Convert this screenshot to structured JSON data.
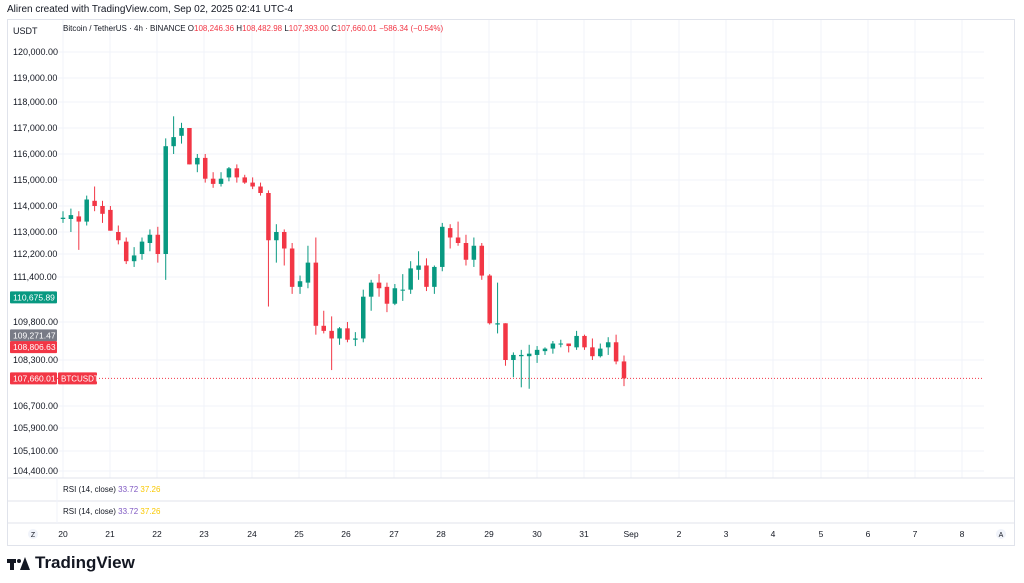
{
  "header": {
    "text": "Aliren created with TradingView.com, Sep 02, 2025 02:41 UTC-4"
  },
  "chart_data": {
    "type": "candlestick",
    "currency_label": "USDT",
    "symbol": "Bitcoin / TetherUS · 4h · BINANCE",
    "ohlc": {
      "o_label": "O",
      "o": "108,246.36",
      "h_label": "H",
      "h": "108,482.98",
      "l_label": "L",
      "l": "107,393.00",
      "c_label": "C",
      "c": "107,660.01",
      "change": "−586.34 (−0.54%)"
    },
    "y_ticks": [
      {
        "label": "120,000.00",
        "v": 120000
      },
      {
        "label": "119,000.00",
        "v": 119000
      },
      {
        "label": "118,000.00",
        "v": 118000
      },
      {
        "label": "117,000.00",
        "v": 117000
      },
      {
        "label": "116,000.00",
        "v": 116000
      },
      {
        "label": "115,000.00",
        "v": 115000
      },
      {
        "label": "114,000.00",
        "v": 114000
      },
      {
        "label": "113,000.00",
        "v": 113000
      },
      {
        "label": "112,200.00",
        "v": 112200
      },
      {
        "label": "111,400.00",
        "v": 111400
      },
      {
        "label": "109,800.00",
        "v": 109800
      },
      {
        "label": "108,300.00",
        "v": 108300
      },
      {
        "label": "106,700.00",
        "v": 106700
      },
      {
        "label": "105,900.00",
        "v": 105900
      },
      {
        "label": "105,100.00",
        "v": 105100
      },
      {
        "label": "104,400.00",
        "v": 104400
      }
    ],
    "price_badges": [
      {
        "label": "110,675.89",
        "v": 110675.89,
        "color": "#089981"
      },
      {
        "label": "109,271.47",
        "v": 109271.47,
        "color": "#787b86"
      },
      {
        "label": "108,806.63",
        "v": 108806.63,
        "color": "#f23645"
      },
      {
        "label": "107,660.01",
        "v": 107660.01,
        "color": "#f23645"
      }
    ],
    "current_price_symbol": "BTCUSDT",
    "x_labels": [
      "20",
      "21",
      "22",
      "23",
      "24",
      "25",
      "26",
      "27",
      "28",
      "29",
      "30",
      "31",
      "Sep",
      "2",
      "3",
      "4",
      "5",
      "6",
      "7",
      "8"
    ],
    "rsi_panes": [
      {
        "label": "RSI (14, close)",
        "v1": "33.72",
        "v2": "37.26"
      },
      {
        "label": "RSI (14, close)",
        "v1": "33.72",
        "v2": "37.26"
      }
    ],
    "candles": [
      {
        "o": 113500,
        "h": 113800,
        "l": 113350,
        "c": 113550
      },
      {
        "o": 113500,
        "h": 113900,
        "l": 113000,
        "c": 113650
      },
      {
        "o": 113600,
        "h": 113800,
        "l": 112350,
        "c": 113400
      },
      {
        "o": 113400,
        "h": 114400,
        "l": 113250,
        "c": 114250
      },
      {
        "o": 114200,
        "h": 114750,
        "l": 113800,
        "c": 114000
      },
      {
        "o": 114000,
        "h": 114200,
        "l": 113350,
        "c": 113700
      },
      {
        "o": 113850,
        "h": 114000,
        "l": 113050,
        "c": 113050
      },
      {
        "o": 113000,
        "h": 113250,
        "l": 112550,
        "c": 112700
      },
      {
        "o": 112650,
        "h": 112800,
        "l": 111850,
        "c": 111950
      },
      {
        "o": 111950,
        "h": 112450,
        "l": 111750,
        "c": 112150
      },
      {
        "o": 112200,
        "h": 112800,
        "l": 112000,
        "c": 112650
      },
      {
        "o": 112600,
        "h": 113100,
        "l": 112300,
        "c": 112900
      },
      {
        "o": 112900,
        "h": 113200,
        "l": 111900,
        "c": 112200
      },
      {
        "o": 112200,
        "h": 116600,
        "l": 111300,
        "c": 116300
      },
      {
        "o": 116300,
        "h": 117450,
        "l": 116000,
        "c": 116650
      },
      {
        "o": 116700,
        "h": 117200,
        "l": 116400,
        "c": 117000
      },
      {
        "o": 117000,
        "h": 117000,
        "l": 115600,
        "c": 115600
      },
      {
        "o": 115600,
        "h": 116000,
        "l": 115300,
        "c": 115850
      },
      {
        "o": 115850,
        "h": 116000,
        "l": 114900,
        "c": 115050
      },
      {
        "o": 115050,
        "h": 115300,
        "l": 114700,
        "c": 114850
      },
      {
        "o": 114850,
        "h": 115300,
        "l": 114750,
        "c": 115050
      },
      {
        "o": 115100,
        "h": 115500,
        "l": 114950,
        "c": 115450
      },
      {
        "o": 115450,
        "h": 115600,
        "l": 114900,
        "c": 115100
      },
      {
        "o": 115100,
        "h": 115200,
        "l": 114850,
        "c": 114900
      },
      {
        "o": 114900,
        "h": 115100,
        "l": 114650,
        "c": 114750
      },
      {
        "o": 114750,
        "h": 114900,
        "l": 114400,
        "c": 114500
      },
      {
        "o": 114500,
        "h": 114600,
        "l": 110350,
        "c": 112700
      },
      {
        "o": 112700,
        "h": 113300,
        "l": 111900,
        "c": 113000
      },
      {
        "o": 113000,
        "h": 113100,
        "l": 111800,
        "c": 112400
      },
      {
        "o": 112400,
        "h": 112600,
        "l": 110800,
        "c": 111050
      },
      {
        "o": 111050,
        "h": 111450,
        "l": 110800,
        "c": 111250
      },
      {
        "o": 111200,
        "h": 112500,
        "l": 111000,
        "c": 111900
      },
      {
        "o": 111900,
        "h": 112800,
        "l": 109300,
        "c": 109650
      },
      {
        "o": 109650,
        "h": 110200,
        "l": 109350,
        "c": 109450
      },
      {
        "o": 109450,
        "h": 110000,
        "l": 107950,
        "c": 109150
      },
      {
        "o": 109150,
        "h": 109600,
        "l": 108900,
        "c": 109550
      },
      {
        "o": 109550,
        "h": 109800,
        "l": 109000,
        "c": 109100
      },
      {
        "o": 109100,
        "h": 109400,
        "l": 108850,
        "c": 109150
      },
      {
        "o": 109150,
        "h": 110950,
        "l": 109000,
        "c": 110700
      },
      {
        "o": 110700,
        "h": 111300,
        "l": 110200,
        "c": 111200
      },
      {
        "o": 111200,
        "h": 111500,
        "l": 110700,
        "c": 111000
      },
      {
        "o": 111050,
        "h": 111200,
        "l": 110150,
        "c": 110450
      },
      {
        "o": 110450,
        "h": 111150,
        "l": 110400,
        "c": 111000
      },
      {
        "o": 110950,
        "h": 111500,
        "l": 110550,
        "c": 110950
      },
      {
        "o": 110950,
        "h": 111950,
        "l": 110800,
        "c": 111700
      },
      {
        "o": 111650,
        "h": 112300,
        "l": 111300,
        "c": 111800
      },
      {
        "o": 111800,
        "h": 112050,
        "l": 110900,
        "c": 111050
      },
      {
        "o": 111050,
        "h": 111800,
        "l": 110800,
        "c": 111750
      },
      {
        "o": 111750,
        "h": 113350,
        "l": 111600,
        "c": 113200
      },
      {
        "o": 113150,
        "h": 113300,
        "l": 112400,
        "c": 112800
      },
      {
        "o": 112800,
        "h": 113400,
        "l": 112500,
        "c": 112600
      },
      {
        "o": 112600,
        "h": 112900,
        "l": 111800,
        "c": 112000
      },
      {
        "o": 112000,
        "h": 112800,
        "l": 111750,
        "c": 112500
      },
      {
        "o": 112500,
        "h": 112600,
        "l": 111300,
        "c": 111450
      },
      {
        "o": 111450,
        "h": 111500,
        "l": 109700,
        "c": 109750
      },
      {
        "o": 109700,
        "h": 111200,
        "l": 109350,
        "c": 109750
      },
      {
        "o": 109750,
        "h": 109750,
        "l": 108100,
        "c": 108300
      },
      {
        "o": 108300,
        "h": 108600,
        "l": 107700,
        "c": 108500
      },
      {
        "o": 108450,
        "h": 108700,
        "l": 107350,
        "c": 108500
      },
      {
        "o": 108450,
        "h": 108900,
        "l": 107300,
        "c": 108550
      },
      {
        "o": 108500,
        "h": 108850,
        "l": 108200,
        "c": 108700
      },
      {
        "o": 108650,
        "h": 108800,
        "l": 108500,
        "c": 108750
      },
      {
        "o": 108750,
        "h": 109050,
        "l": 108550,
        "c": 108950
      },
      {
        "o": 108950,
        "h": 109100,
        "l": 108800,
        "c": 108950
      },
      {
        "o": 108950,
        "h": 108950,
        "l": 108600,
        "c": 108850
      },
      {
        "o": 108800,
        "h": 109450,
        "l": 108700,
        "c": 109250
      },
      {
        "o": 109250,
        "h": 109300,
        "l": 108700,
        "c": 108800
      },
      {
        "o": 108800,
        "h": 109150,
        "l": 108300,
        "c": 108450
      },
      {
        "o": 108450,
        "h": 108950,
        "l": 108400,
        "c": 108750
      },
      {
        "o": 108800,
        "h": 109200,
        "l": 108500,
        "c": 109000
      },
      {
        "o": 109000,
        "h": 109300,
        "l": 108150,
        "c": 108250
      },
      {
        "o": 108250,
        "h": 108480,
        "l": 107390,
        "c": 107660
      }
    ]
  }
}
